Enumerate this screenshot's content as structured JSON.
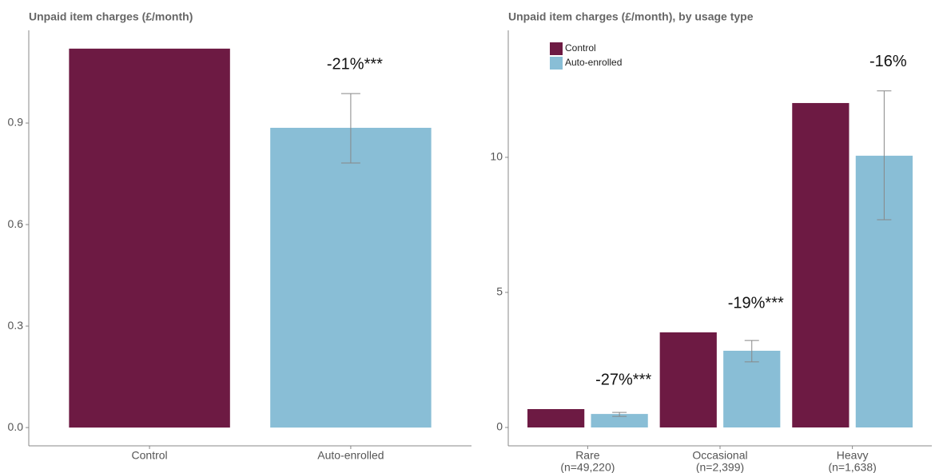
{
  "chart_data": [
    {
      "type": "bar",
      "title": "Unpaid item charges (£/month)",
      "categories": [
        "Control",
        "Auto-enrolled"
      ],
      "values": [
        1.12,
        0.886
      ],
      "colors": [
        "#6d1a43",
        "#89bed6"
      ],
      "error_lower": [
        null,
        0.782
      ],
      "error_upper": [
        null,
        0.987
      ],
      "annotations": [
        null,
        "-21%***"
      ],
      "ylim": [
        -0.054,
        1.174
      ],
      "yticks": [
        {
          "value": 0,
          "label": "0.0"
        },
        0.3,
        0.6,
        0.9
      ]
    },
    {
      "type": "bar",
      "title": "Unpaid item charges (£/month), by usage type",
      "categories": [
        "Rare",
        "Occasional",
        "Heavy"
      ],
      "category_notes": [
        "(n=49,220)",
        "(n=2,399)",
        "(n=1,638)"
      ],
      "series": [
        {
          "name": "Control",
          "color": "#6d1a43",
          "values": [
            0.68,
            3.52,
            12.01
          ]
        },
        {
          "name": "Auto-enrolled",
          "color": "#89bed6",
          "values": [
            0.5,
            2.84,
            10.06
          ],
          "error_lower": [
            0.41,
            2.43,
            7.69
          ],
          "error_upper": [
            0.56,
            3.22,
            12.46
          ]
        }
      ],
      "annotations": [
        "-27%***",
        "-19%***",
        "-16%"
      ],
      "legend_position": "top-left",
      "ylim": [
        -0.68,
        14.7
      ],
      "yticks": [
        0,
        5,
        10
      ]
    }
  ]
}
